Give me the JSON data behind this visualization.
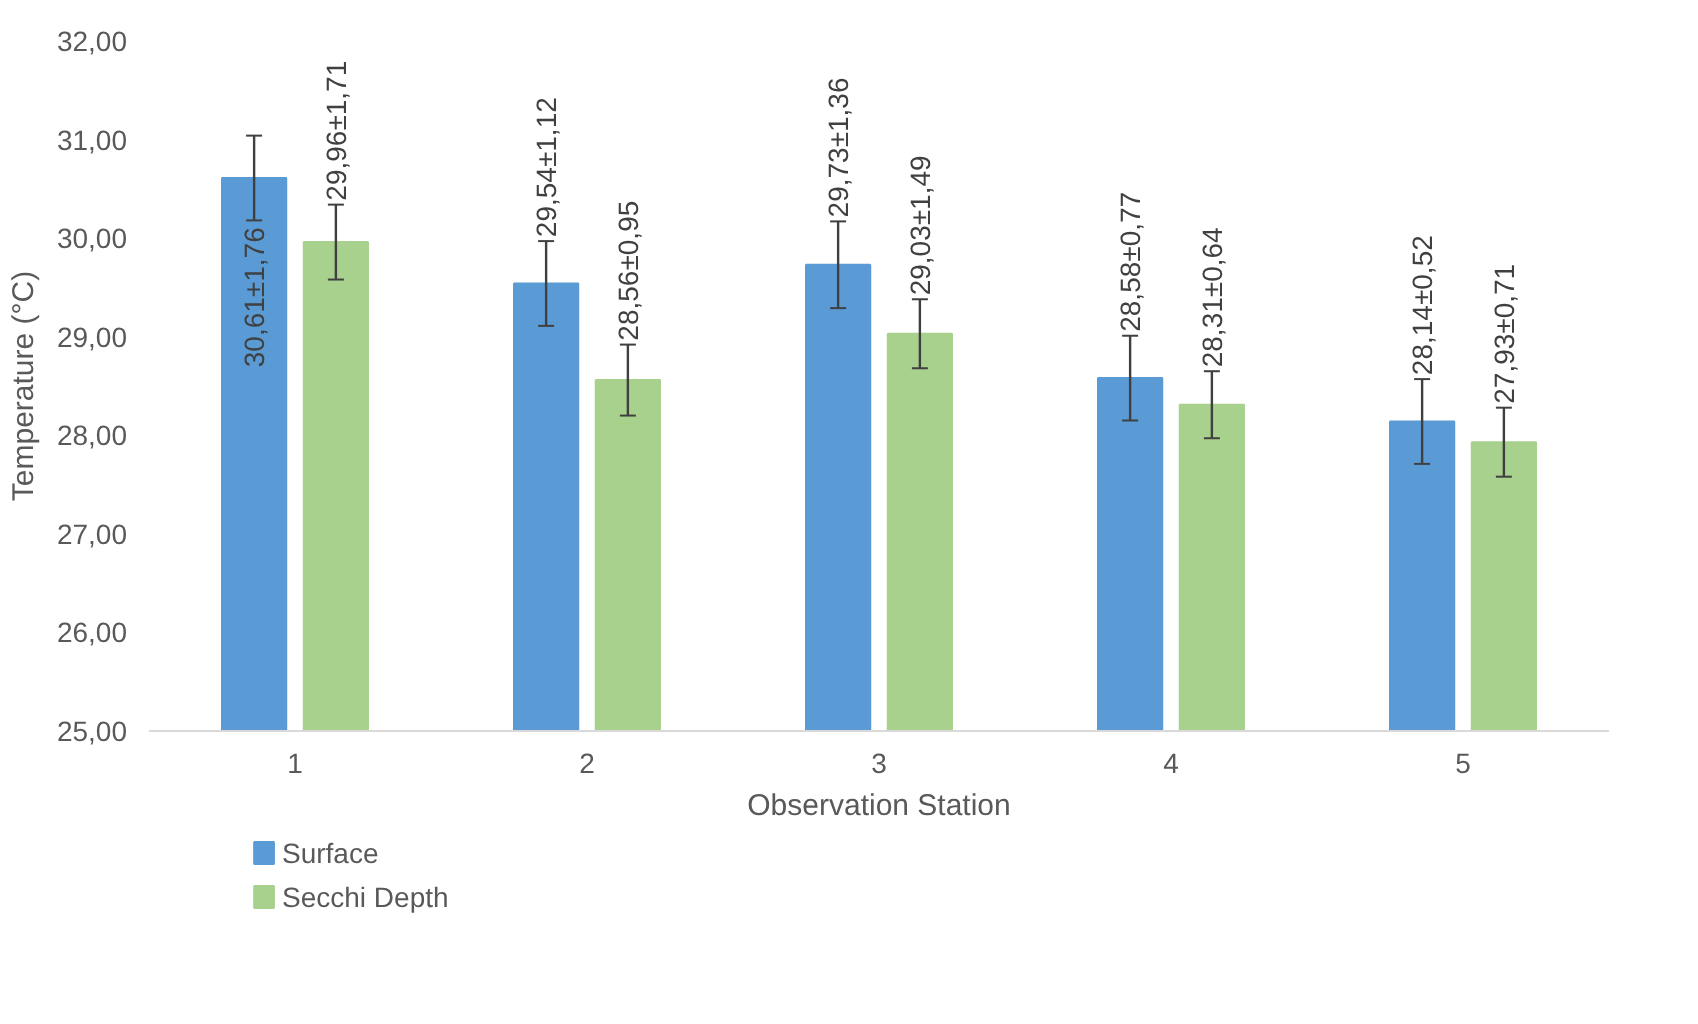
{
  "chart_data": {
    "type": "bar",
    "xlabel": "Observation Station",
    "ylabel": "Temperature (°C)",
    "categories": [
      "1",
      "2",
      "3",
      "4",
      "5"
    ],
    "series": [
      {
        "name": "Surface",
        "color": "#5b9bd5",
        "values": [
          30.61,
          29.54,
          29.73,
          28.58,
          28.14
        ],
        "errors": [
          0.43,
          0.43,
          0.44,
          0.43,
          0.43
        ],
        "value_labels": [
          "30,61±1,76",
          "29,54±1,12",
          "29,73±1,36",
          "28,58±0,77",
          "28,14±0,52"
        ]
      },
      {
        "name": "Secchi Depth",
        "color": "#a9d18e",
        "values": [
          29.96,
          28.56,
          29.03,
          28.31,
          27.93
        ],
        "errors": [
          0.38,
          0.36,
          0.35,
          0.34,
          0.35
        ],
        "value_labels": [
          "29,96±1,71",
          "28,56±0,95",
          "29,03±1,49",
          "28,31±0,64",
          "27,93±0,71"
        ]
      }
    ],
    "ylim": [
      25,
      32
    ],
    "yticks": [
      {
        "value": 25,
        "label": "25,00"
      },
      {
        "value": 26,
        "label": "26,00"
      },
      {
        "value": 27,
        "label": "27,00"
      },
      {
        "value": 28,
        "label": "28,00"
      },
      {
        "value": 29,
        "label": "29,00"
      },
      {
        "value": 30,
        "label": "30,00"
      },
      {
        "value": 31,
        "label": "31,00"
      },
      {
        "value": 32,
        "label": "32,00"
      }
    ],
    "grid": false,
    "legend": "bottom left"
  }
}
